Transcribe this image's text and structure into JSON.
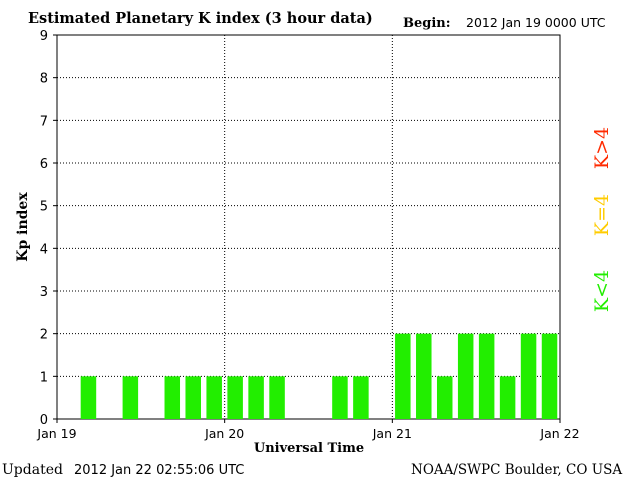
{
  "header": {
    "title": "Estimated Planetary K index (3 hour data)",
    "begin_label": "Begin:",
    "begin_value": "2012 Jan 19 0000 UTC"
  },
  "footer": {
    "updated_label": "Updated",
    "updated_value": "2012 Jan 22 02:55:06 UTC",
    "source": "NOAA/SWPC Boulder, CO USA"
  },
  "legend": [
    {
      "label": "K>4",
      "color": "#ff2a00"
    },
    {
      "label": "K=4",
      "color": "#ffcc00"
    },
    {
      "label": "K<4",
      "color": "#22ee00"
    }
  ],
  "chart_data": {
    "type": "bar",
    "title": "Estimated Planetary K index (3 hour data)",
    "xlabel": "Universal Time",
    "ylabel": "Kp index",
    "ylim": [
      0,
      9
    ],
    "yticks": [
      "0",
      "1",
      "2",
      "3",
      "4",
      "5",
      "6",
      "7",
      "8",
      "9"
    ],
    "x_tick_labels": [
      "Jan 19",
      "Jan 20",
      "Jan 21",
      "Jan 22"
    ],
    "grid": "dotted vertical lines at day boundaries, dotted horizontal lines at each integer Kp",
    "bar_color": "#22ee00",
    "interval_hours": 3,
    "series": [
      {
        "values": [
          0,
          1,
          0,
          1,
          0,
          1,
          1,
          1,
          1,
          1,
          1,
          0,
          0,
          1,
          1,
          0,
          2,
          2,
          1,
          2,
          2,
          1,
          2,
          2
        ]
      }
    ]
  }
}
